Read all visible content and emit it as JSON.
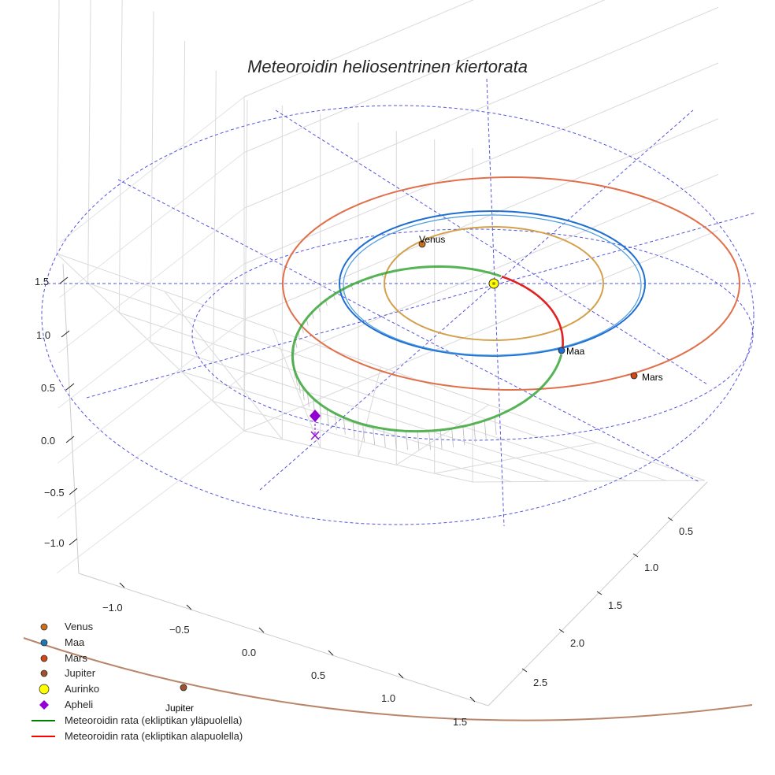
{
  "chart_data": {
    "type": "line",
    "projection": "3d",
    "title": "Meteoroidin heliosentrinen kiertorata",
    "x_ticks": [
      "−1.0",
      "−0.5",
      "0.0",
      "0.5",
      "1.0",
      "1.5"
    ],
    "y_ticks": [
      "0.5",
      "1.0",
      "1.5",
      "2.0",
      "2.5"
    ],
    "z_ticks": [
      "−1.0",
      "−0.5",
      "0.0",
      "0.5",
      "1.0",
      "1.5"
    ],
    "xlim": [
      -1.2,
      1.6
    ],
    "ylim": [
      0.3,
      2.8
    ],
    "zlim": [
      -1.2,
      1.6
    ],
    "grid": true,
    "reference_circles_au": [
      1.0,
      1.5
    ],
    "planets": [
      {
        "name": "Venus",
        "label": "Venus",
        "orbit_radius_au": 0.72,
        "color": "#d4a04a",
        "marker_color": "#c9701f",
        "angle_deg": 125
      },
      {
        "name": "Maa",
        "label": "Maa",
        "orbit_radius_au": 1.0,
        "color": "#1f6fd0",
        "marker_color": "#1f6fd0",
        "angle_deg": -49
      },
      {
        "name": "Mars",
        "label": "Mars",
        "orbit_radius_au": 1.52,
        "color": "#e0704a",
        "marker_color": "#cc4a1a",
        "angle_deg": -61
      },
      {
        "name": "Jupiter",
        "label": "Jupiter",
        "orbit_radius_au": 5.2,
        "color": "#b8866a",
        "marker_color": "#a0522d"
      }
    ],
    "meteoroid": {
      "above_color": "#2ca02c",
      "below_color": "#e32020",
      "aphelion_z": 0.14
    },
    "legend": [
      {
        "label": "Venus",
        "marker": "circle",
        "color": "#c9701f"
      },
      {
        "label": "Maa",
        "marker": "circle",
        "color": "#1f77b4"
      },
      {
        "label": "Mars",
        "marker": "circle",
        "color": "#cc4a1a"
      },
      {
        "label": "Jupiter",
        "marker": "circle",
        "color": "#a0522d"
      },
      {
        "label": "Aurinko",
        "marker": "circle-large",
        "color": "#ffff00"
      },
      {
        "label": "Apheli",
        "marker": "diamond",
        "color": "#9400d3"
      },
      {
        "label": "Meteoroidin rata (ekliptikan yläpuolella)",
        "marker": "line",
        "color": "#008000"
      },
      {
        "label": "Meteoroidin rata (ekliptikan alapuolella)",
        "marker": "line",
        "color": "#ff0000"
      }
    ]
  }
}
